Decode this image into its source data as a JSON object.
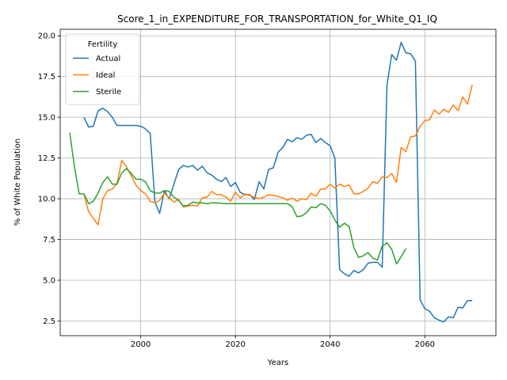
{
  "chart_data": {
    "type": "line",
    "title": "Score_1_in_EXPENDITURE_FOR_TRANSPORTATION_for_White_Q1_IQ",
    "xlabel": "Years",
    "ylabel": "% of White Population",
    "xlim": [
      1983,
      2075
    ],
    "ylim": [
      1.6,
      20.4
    ],
    "xticks": [
      2000,
      2020,
      2040,
      2060
    ],
    "yticks": [
      2.5,
      5.0,
      7.5,
      10.0,
      12.5,
      15.0,
      17.5,
      20.0
    ],
    "xtick_labels": [
      "2000",
      "2020",
      "2040",
      "2060"
    ],
    "ytick_labels": [
      "2.5",
      "5.0",
      "7.5",
      "10.0",
      "12.5",
      "15.0",
      "17.5",
      "20.0"
    ],
    "grid": true,
    "legend": {
      "title": "Fertility",
      "placement": "upper-left"
    },
    "colors": {
      "Actual": "#1f77b4",
      "Ideal": "#ff7f0e",
      "Sterile": "#2ca02c"
    },
    "series": [
      {
        "name": "Actual",
        "x": [
          1988,
          1989,
          1990,
          1991,
          1992,
          1993,
          1994,
          1995,
          1996,
          1997,
          1998,
          1999,
          2000,
          2001,
          2002,
          2003,
          2004,
          2005,
          2006,
          2007,
          2008,
          2009,
          2010,
          2011,
          2012,
          2013,
          2014,
          2015,
          2016,
          2017,
          2018,
          2019,
          2020,
          2021,
          2022,
          2023,
          2024,
          2025,
          2026,
          2027,
          2028,
          2029,
          2030,
          2031,
          2032,
          2033,
          2034,
          2035,
          2036,
          2037,
          2038,
          2039,
          2040,
          2041,
          2042,
          2043,
          2044,
          2045,
          2046,
          2047,
          2048,
          2049,
          2050,
          2051,
          2052,
          2053,
          2054,
          2055,
          2056,
          2057,
          2058,
          2059,
          2060,
          2061,
          2062,
          2063,
          2064,
          2065,
          2066,
          2067,
          2068,
          2069,
          2070
        ],
        "y": [
          15.0,
          14.4,
          14.45,
          15.4,
          15.55,
          15.35,
          15.0,
          14.5,
          14.5,
          14.5,
          14.5,
          14.5,
          14.45,
          14.3,
          14.0,
          9.8,
          9.1,
          10.5,
          10.0,
          10.9,
          11.8,
          12.05,
          11.95,
          12.05,
          11.75,
          12.0,
          11.6,
          11.45,
          11.2,
          11.05,
          11.3,
          10.75,
          11.0,
          10.4,
          10.25,
          10.25,
          9.95,
          11.05,
          10.6,
          11.8,
          11.9,
          12.85,
          13.15,
          13.65,
          13.5,
          13.75,
          13.65,
          13.9,
          13.95,
          13.45,
          13.7,
          13.45,
          13.25,
          12.5,
          5.65,
          5.4,
          5.25,
          5.6,
          5.45,
          5.65,
          6.05,
          6.1,
          6.1,
          5.8,
          17.0,
          18.85,
          18.5,
          19.6,
          18.95,
          18.9,
          18.45,
          3.8,
          3.25,
          3.1,
          2.7,
          2.55,
          2.45,
          2.75,
          2.7,
          3.35,
          3.3,
          3.75,
          3.75
        ]
      },
      {
        "name": "Ideal",
        "x": [
          1988,
          1989,
          1990,
          1991,
          1992,
          1993,
          1994,
          1995,
          1996,
          1997,
          1998,
          1999,
          2000,
          2001,
          2002,
          2003,
          2004,
          2005,
          2006,
          2007,
          2008,
          2009,
          2010,
          2011,
          2012,
          2013,
          2014,
          2015,
          2016,
          2017,
          2018,
          2019,
          2020,
          2021,
          2022,
          2023,
          2024,
          2025,
          2026,
          2027,
          2028,
          2029,
          2030,
          2031,
          2032,
          2033,
          2034,
          2035,
          2036,
          2037,
          2038,
          2039,
          2040,
          2041,
          2042,
          2043,
          2044,
          2045,
          2046,
          2047,
          2048,
          2049,
          2050,
          2051,
          2052,
          2053,
          2054,
          2055,
          2056,
          2057,
          2058,
          2059,
          2060,
          2061,
          2062,
          2063,
          2064,
          2065,
          2066,
          2067,
          2068,
          2069,
          2070
        ],
        "y": [
          10.3,
          9.2,
          8.8,
          8.4,
          10.0,
          10.5,
          10.6,
          10.95,
          12.35,
          11.95,
          11.4,
          10.85,
          10.5,
          10.3,
          9.85,
          9.75,
          9.9,
          10.35,
          10.05,
          9.8,
          9.95,
          9.5,
          9.55,
          9.6,
          9.55,
          10.05,
          10.1,
          10.45,
          10.25,
          10.25,
          10.1,
          9.85,
          10.4,
          10.05,
          10.3,
          10.2,
          10.1,
          10.0,
          10.1,
          10.25,
          10.2,
          10.15,
          10.05,
          9.9,
          10.05,
          9.85,
          10.0,
          9.95,
          10.35,
          10.15,
          10.6,
          10.6,
          10.9,
          10.65,
          10.9,
          10.75,
          10.85,
          10.3,
          10.3,
          10.45,
          10.65,
          11.05,
          10.95,
          11.35,
          11.3,
          11.55,
          11.0,
          13.15,
          12.9,
          13.8,
          13.85,
          14.45,
          14.8,
          14.85,
          15.45,
          15.2,
          15.5,
          15.3,
          15.75,
          15.4,
          16.25,
          15.8,
          17.0
        ]
      },
      {
        "name": "Sterile",
        "x": [
          1985,
          1986,
          1987,
          1988,
          1989,
          1990,
          1991,
          1992,
          1993,
          1994,
          1995,
          1996,
          1997,
          1998,
          1999,
          2000,
          2001,
          2002,
          2003,
          2004,
          2005,
          2006,
          2007,
          2008,
          2009,
          2010,
          2011,
          2012,
          2013,
          2014,
          2015,
          2016,
          2017,
          2018,
          2019,
          2020,
          2021,
          2022,
          2023,
          2024,
          2025,
          2026,
          2027,
          2028,
          2029,
          2030,
          2031,
          2032,
          2033,
          2034,
          2035,
          2036,
          2037,
          2038,
          2039,
          2040,
          2041,
          2042,
          2043,
          2044,
          2045,
          2046,
          2047,
          2048,
          2049,
          2050,
          2051,
          2052,
          2053,
          2054,
          2055,
          2056
        ],
        "y": [
          14.05,
          12.0,
          10.3,
          10.3,
          9.7,
          9.85,
          10.35,
          11.0,
          11.35,
          10.9,
          10.9,
          11.6,
          11.85,
          11.55,
          11.2,
          11.2,
          11.05,
          10.5,
          10.35,
          10.35,
          10.5,
          10.45,
          10.1,
          9.9,
          9.55,
          9.6,
          9.8,
          9.75,
          9.75,
          9.7,
          9.75,
          9.75,
          9.72,
          9.7,
          9.7,
          9.7,
          9.7,
          9.7,
          9.7,
          9.7,
          9.7,
          9.7,
          9.7,
          9.7,
          9.7,
          9.7,
          9.7,
          9.5,
          8.9,
          8.95,
          9.15,
          9.5,
          9.45,
          9.7,
          9.6,
          9.25,
          8.7,
          8.25,
          8.5,
          8.3,
          7.0,
          6.4,
          6.5,
          6.7,
          6.35,
          6.25,
          7.1,
          7.3,
          6.9,
          6.0,
          6.45,
          6.95
        ]
      }
    ]
  }
}
